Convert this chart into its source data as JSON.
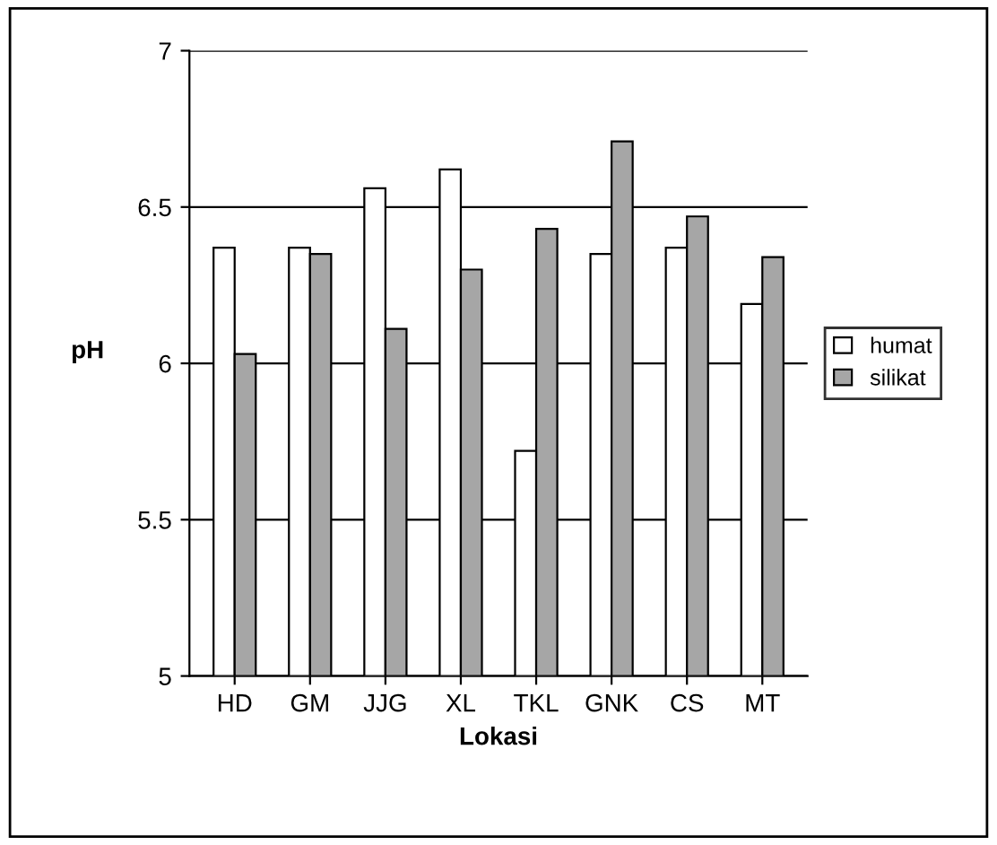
{
  "chart_data": {
    "type": "bar",
    "xlabel": "Lokasi",
    "ylabel": "pH",
    "categories": [
      "HD",
      "GM",
      "JJG",
      "XL",
      "TKL",
      "GNK",
      "CS",
      "MT"
    ],
    "series": [
      {
        "name": "humat",
        "color": "#ffffff",
        "values": [
          6.37,
          6.37,
          6.56,
          6.62,
          5.72,
          6.35,
          6.37,
          6.19
        ]
      },
      {
        "name": "silikat",
        "color": "#a6a6a6",
        "values": [
          6.03,
          6.35,
          6.11,
          6.3,
          6.43,
          6.71,
          6.47,
          6.34
        ]
      }
    ],
    "ylim": [
      5,
      7
    ],
    "yticks": [
      5,
      5.5,
      6,
      6.5,
      7
    ],
    "grid": "y",
    "legend": "right"
  }
}
